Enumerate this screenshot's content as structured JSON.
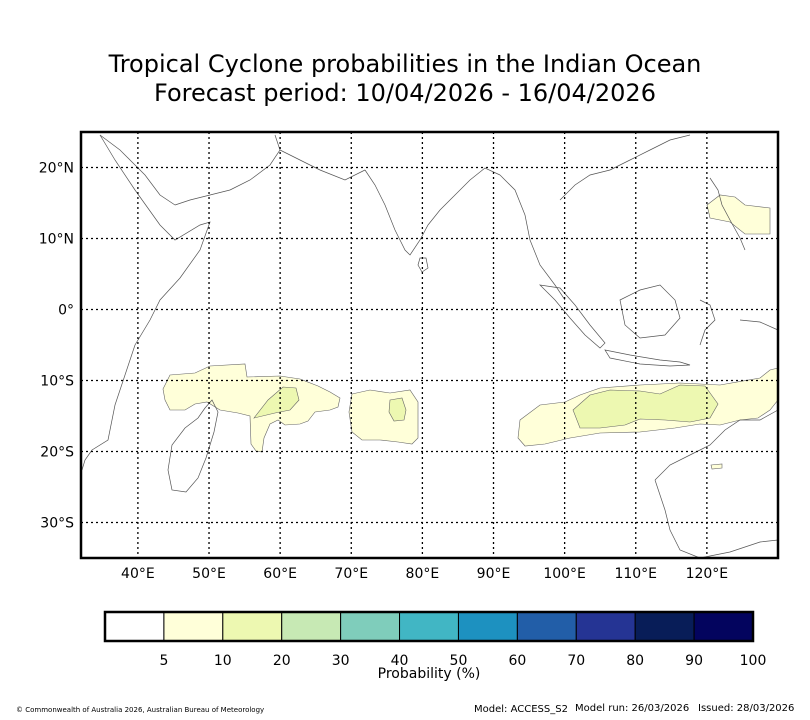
{
  "title": {
    "line1": "Tropical Cyclone probabilities in the Indian Ocean",
    "line2": "Forecast period: 10/04/2026 - 16/04/2026"
  },
  "map": {
    "lon_range": [
      32,
      130
    ],
    "lat_range": [
      -35,
      25
    ],
    "lon_ticks": [
      "40°E",
      "50°E",
      "60°E",
      "70°E",
      "80°E",
      "90°E",
      "100°E",
      "110°E",
      "120°E"
    ],
    "lat_ticks": [
      "20°N",
      "10°N",
      "0°",
      "10°S",
      "20°S",
      "30°S"
    ],
    "land_color": "#ffffff",
    "coast_color": "#555555"
  },
  "colorbar": {
    "label": "Probability (%)",
    "tick_labels": [
      "5",
      "10",
      "20",
      "30",
      "40",
      "50",
      "60",
      "70",
      "80",
      "90",
      "100"
    ],
    "colors": [
      "#ffffff",
      "#ffffd9",
      "#edf8b1",
      "#c7e9b4",
      "#7fcdbb",
      "#41b6c4",
      "#1d91c0",
      "#225ea8",
      "#253494",
      "#081d58",
      "#03045e"
    ]
  },
  "footer": {
    "copyright": "© Commonwealth of Australia 2026, Australian Bureau of Meteorology",
    "model": "Model: ACCESS_S2",
    "model_run": "Model run: 26/03/2026",
    "issued": "Issued: 28/03/2026"
  }
}
